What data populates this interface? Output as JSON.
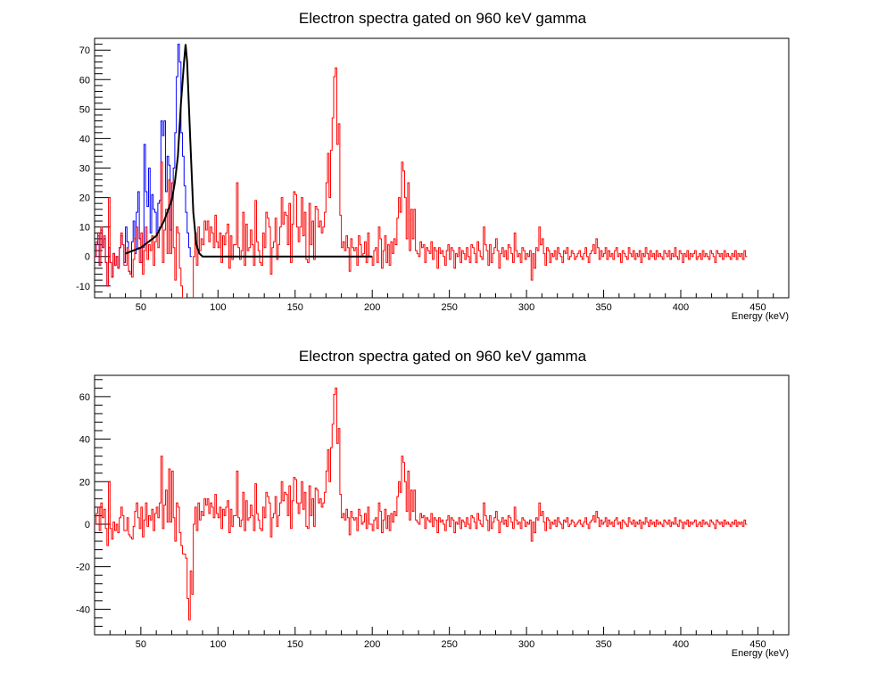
{
  "chart_data": [
    {
      "type": "line",
      "title": "Electron spectra gated on 960 keV gamma",
      "xlabel": "Energy (keV)",
      "ylabel": "",
      "xlim": [
        20,
        470
      ],
      "ylim": [
        -14,
        74
      ],
      "x_ticks": [
        50,
        100,
        150,
        200,
        250,
        300,
        350,
        400,
        450
      ],
      "y_ticks": [
        -10,
        0,
        10,
        20,
        30,
        40,
        50,
        60,
        70
      ],
      "grid": false,
      "legend": "none",
      "series": [
        {
          "color": "#0000ff",
          "binning": {
            "start": 20,
            "width": 1
          },
          "values": [
            0,
            4,
            7,
            -3,
            9,
            3,
            6,
            -2,
            -10,
            3,
            -2,
            -7,
            1,
            -3,
            0,
            -4,
            3,
            7,
            4,
            -2,
            10,
            5,
            -5,
            -6,
            5,
            12,
            1,
            15,
            22,
            6,
            -2,
            3,
            38,
            22,
            17,
            30,
            8,
            21,
            16,
            15,
            8,
            18,
            19,
            46,
            41,
            46,
            22,
            34,
            31,
            9,
            20,
            30,
            42,
            61,
            72,
            66,
            42,
            34,
            24,
            15,
            8,
            3,
            0
          ]
        },
        {
          "color": "#ff0000",
          "binning": {
            "start": 20,
            "width": 1
          },
          "values": [
            0,
            5,
            8,
            -3,
            10,
            3,
            7,
            -2,
            -10,
            20,
            -2,
            -7,
            1,
            -3,
            0,
            -4,
            3,
            8,
            4,
            -3,
            -3,
            3,
            -5,
            -6,
            -7,
            -1,
            6,
            10,
            3,
            -2,
            8,
            -6,
            2,
            10,
            -1,
            4,
            2,
            7,
            -3,
            5,
            8,
            3,
            10,
            32,
            -2,
            9,
            16,
            1,
            26,
            1,
            25,
            3,
            -8,
            10,
            8,
            -4,
            -10,
            -14,
            -14,
            -16,
            -35,
            -45,
            -22,
            -33,
            0,
            8,
            -3,
            10,
            2,
            6,
            4,
            12,
            9,
            12,
            5,
            10,
            8,
            3,
            14,
            5,
            3,
            8,
            -2,
            7,
            4,
            8,
            11,
            -4,
            7,
            -1,
            4,
            4,
            25,
            3,
            -1,
            2,
            15,
            -3,
            11,
            2,
            3,
            9,
            4,
            -3,
            19,
            5,
            2,
            -2,
            -3,
            8,
            3,
            15,
            13,
            10,
            -6,
            3,
            5,
            13,
            -1,
            4,
            10,
            20,
            11,
            15,
            14,
            4,
            18,
            -2,
            11,
            22,
            21,
            10,
            5,
            10,
            20,
            7,
            15,
            -1,
            -2,
            18,
            4,
            12,
            -1,
            17,
            16,
            10,
            12,
            8,
            10,
            15,
            25,
            35,
            20,
            36,
            47,
            61,
            64,
            38,
            45,
            14,
            3,
            5,
            2,
            7,
            3,
            -5,
            6,
            3,
            2,
            3,
            -3,
            7,
            4,
            0,
            1,
            5,
            -2,
            8,
            0,
            0,
            -3,
            2,
            3,
            -2,
            10,
            6,
            -4,
            2,
            7,
            -2,
            4,
            -3,
            5,
            1,
            6,
            4,
            13,
            20,
            15,
            32,
            29,
            20,
            6,
            25,
            2,
            16,
            6,
            16,
            2,
            1,
            0,
            5,
            3,
            4,
            -2,
            3,
            2,
            1,
            5,
            -1,
            3,
            2,
            -4,
            3,
            1,
            2,
            0,
            -3,
            2,
            4,
            -1,
            3,
            2,
            -4,
            1,
            0,
            3,
            -2,
            2,
            1,
            -1,
            3,
            0,
            -2,
            4,
            3,
            1,
            -2,
            5,
            2,
            0,
            -1,
            10,
            4,
            2,
            -3,
            4,
            -2,
            1,
            3,
            6,
            2,
            -4,
            1,
            3,
            0,
            2,
            -1,
            4,
            3,
            1,
            -2,
            8,
            2,
            0,
            1,
            -2,
            3,
            2,
            -1,
            1,
            0,
            2,
            -8,
            1,
            -4,
            3,
            2,
            10,
            4,
            6,
            1,
            -3,
            3,
            2,
            -2,
            1,
            0,
            2,
            -1,
            3,
            1,
            0,
            -2,
            2,
            1,
            3,
            -1,
            0,
            2,
            1,
            -1,
            0,
            1,
            2,
            0,
            -1,
            1,
            3,
            0,
            -2,
            1,
            2,
            4,
            1,
            6,
            3,
            -1,
            2,
            0,
            1,
            3,
            -1,
            2,
            0,
            1,
            -1,
            2,
            3,
            0,
            1,
            -2,
            2,
            1,
            0,
            -1,
            3,
            1,
            0,
            2,
            -1,
            1,
            0,
            2,
            -2,
            1,
            0,
            3,
            1,
            -1,
            2,
            0,
            1,
            -1,
            2,
            0,
            1,
            0,
            -1,
            2,
            1,
            0,
            2,
            -1,
            1,
            0,
            3,
            0,
            -1,
            2,
            1,
            -2,
            1,
            0,
            2,
            -1,
            1,
            0,
            1,
            2,
            -1,
            0,
            1,
            -1,
            2,
            0,
            1,
            0,
            -1,
            2,
            1,
            0,
            -2,
            2,
            1,
            0,
            1,
            -1,
            2,
            0,
            1,
            0,
            -1,
            1,
            0,
            2,
            -1,
            1,
            0,
            1,
            -1,
            2,
            0
          ]
        },
        {
          "color": "#000000",
          "style": "fit",
          "x": [
            40,
            45,
            50,
            55,
            60,
            65,
            70,
            72,
            74,
            76,
            78,
            79,
            80,
            82,
            84,
            86,
            88,
            90,
            100,
            150,
            200
          ],
          "y": [
            1,
            2,
            3,
            5,
            7,
            12,
            19,
            25,
            34,
            52,
            66,
            72,
            66,
            40,
            15,
            4,
            1,
            0,
            0,
            0,
            0
          ]
        }
      ]
    },
    {
      "type": "line",
      "title": "Electron spectra gated on 960 keV gamma",
      "xlabel": "Energy (keV)",
      "ylabel": "",
      "xlim": [
        20,
        470
      ],
      "ylim": [
        -52,
        70
      ],
      "x_ticks": [
        50,
        100,
        150,
        200,
        250,
        300,
        350,
        400,
        450
      ],
      "y_ticks": [
        -40,
        -20,
        0,
        20,
        40,
        60
      ],
      "grid": false,
      "legend": "none",
      "series": [
        {
          "color": "#ff0000",
          "binning": {
            "start": 20,
            "width": 1
          },
          "source_series": 1
        }
      ]
    }
  ]
}
